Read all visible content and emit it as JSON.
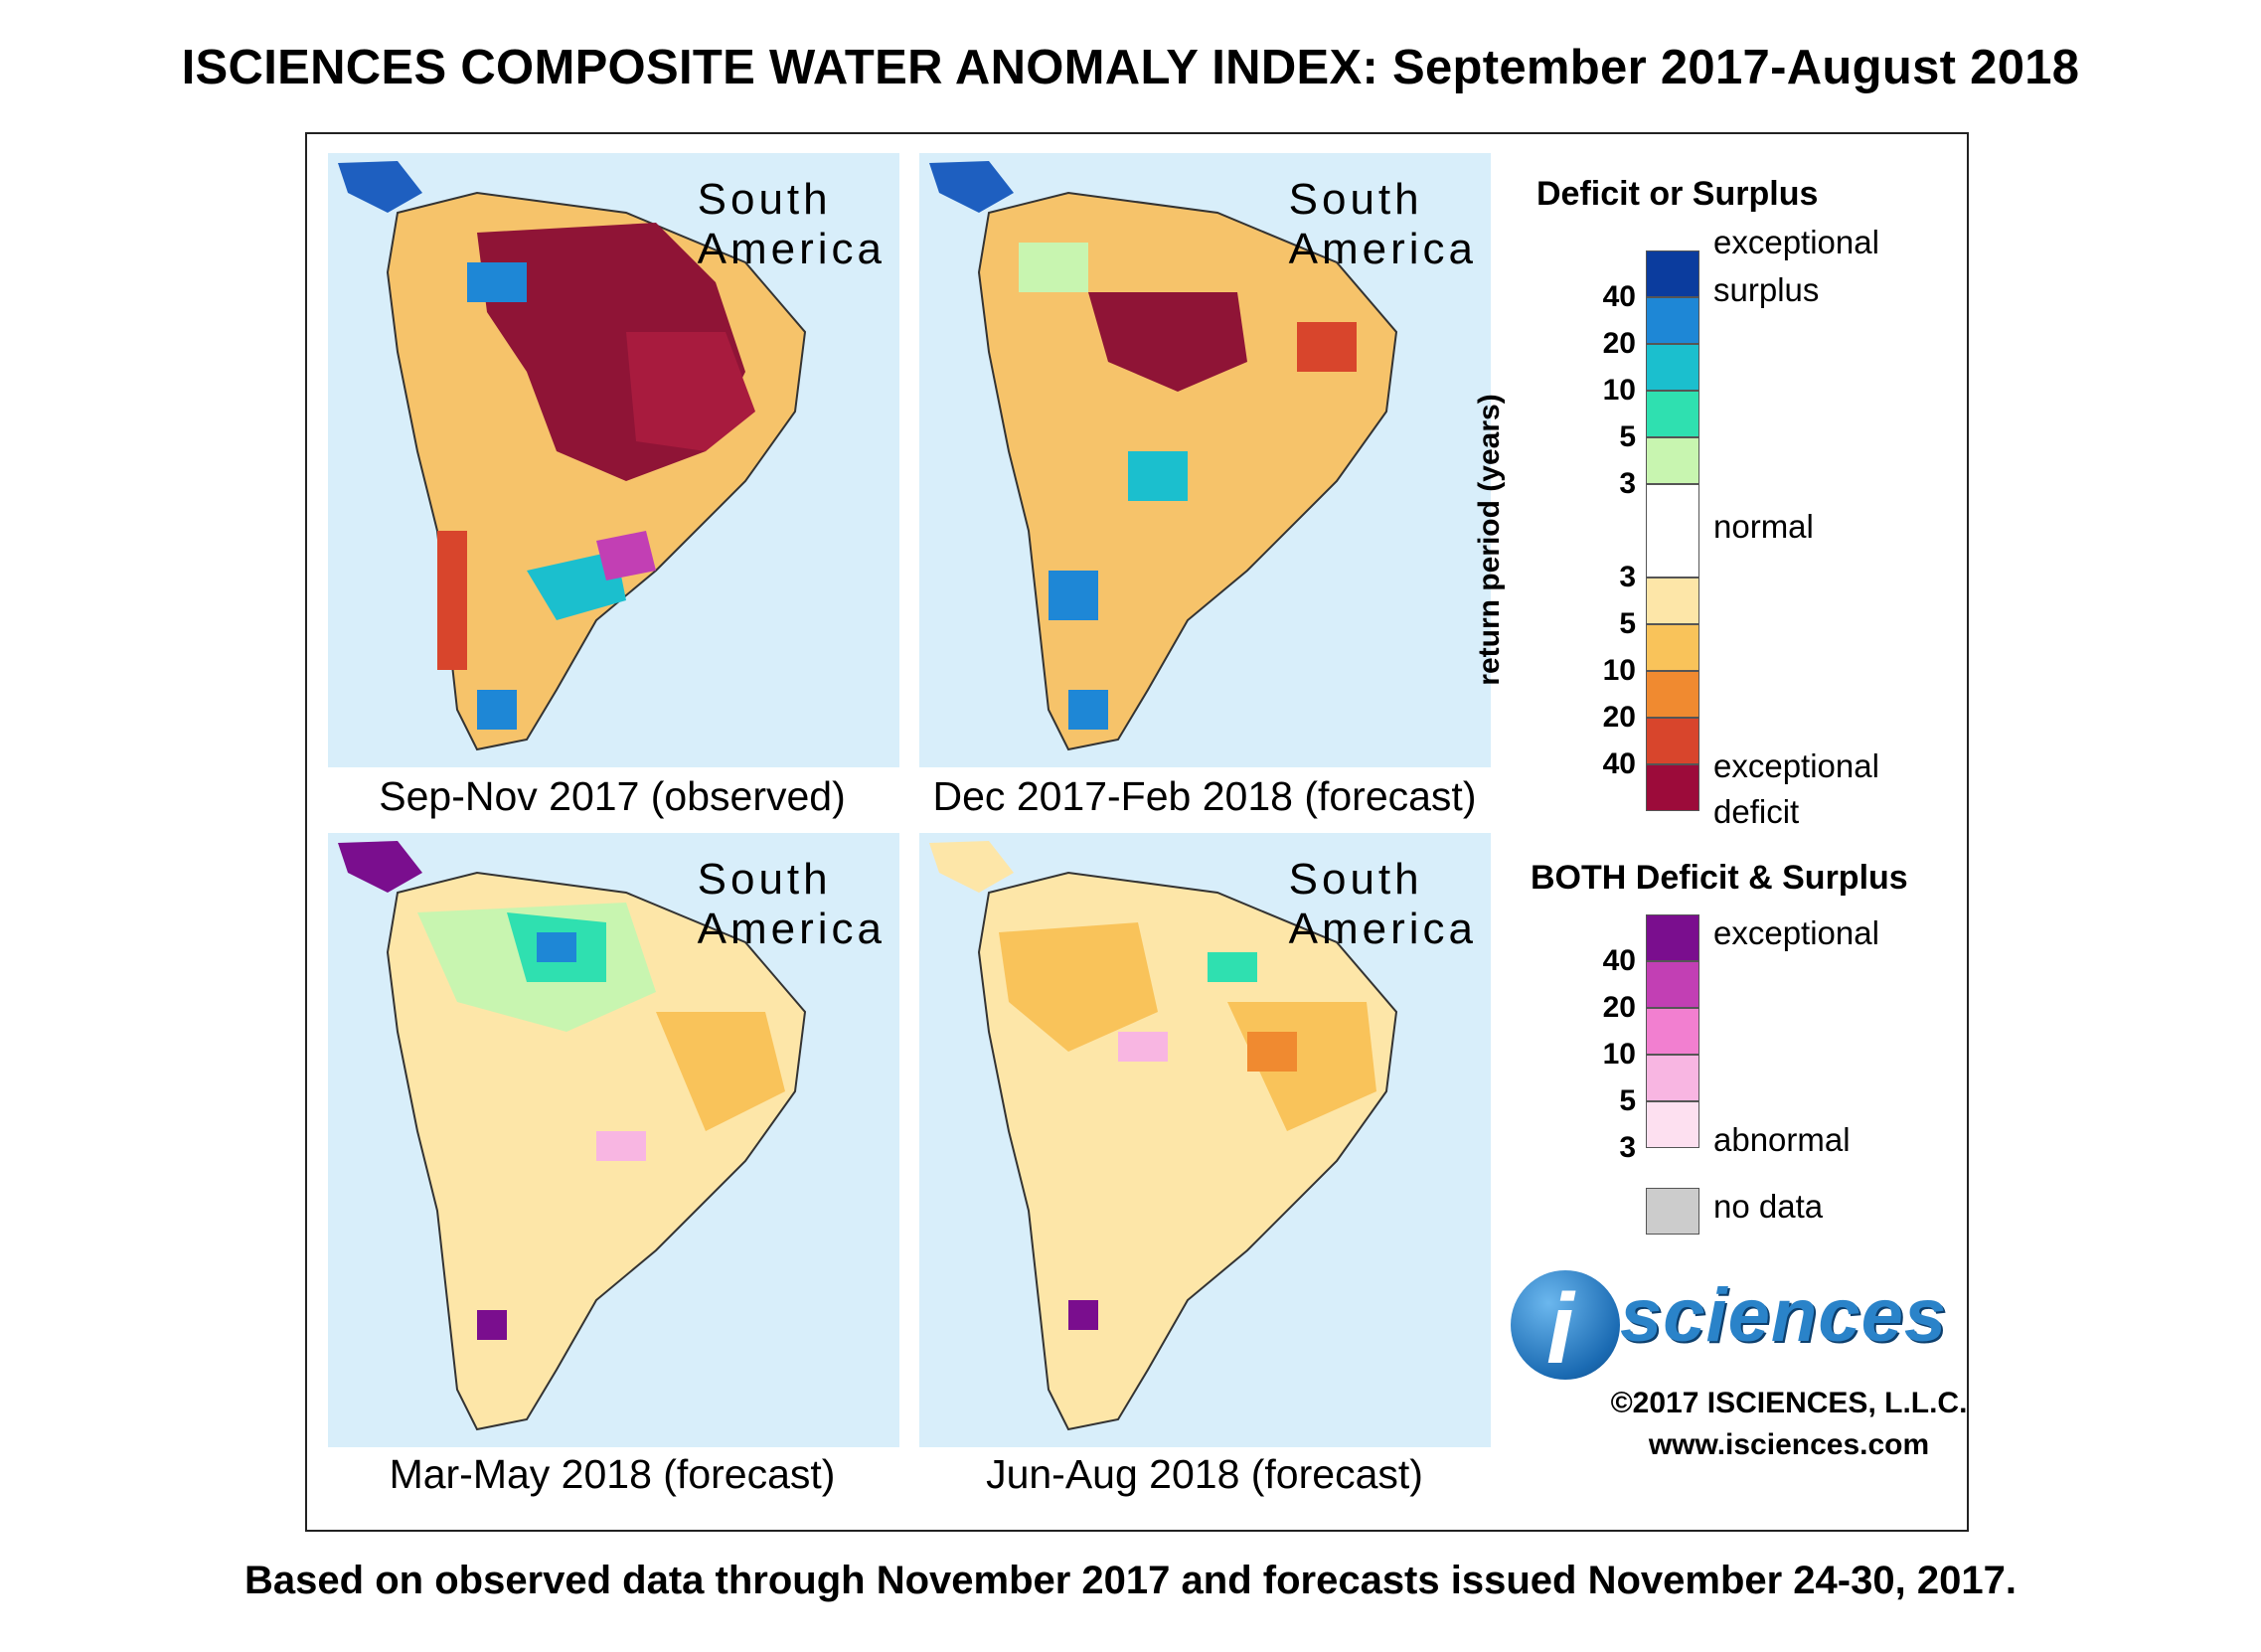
{
  "title": "ISCIENCES COMPOSITE WATER ANOMALY INDEX: September 2017-August 2018",
  "footer": "Based on observed data through November 2017 and forecasts issued November 24-30, 2017.",
  "panels": [
    {
      "region_line1": "South",
      "region_line2": "America",
      "caption": "Sep-Nov 2017 (observed)",
      "theme": "deficit-heavy"
    },
    {
      "region_line1": "South",
      "region_line2": "America",
      "caption": "Dec 2017-Feb 2018 (forecast)",
      "theme": "deficit-moderate"
    },
    {
      "region_line1": "South",
      "region_line2": "America",
      "caption": "Mar-May 2018 (forecast)",
      "theme": "surplus-north"
    },
    {
      "region_line1": "South",
      "region_line2": "America",
      "caption": "Jun-Aug 2018 (forecast)",
      "theme": "mild-deficit"
    }
  ],
  "legend": {
    "deficit_surplus_title": "Deficit or Surplus",
    "axis_title": "return period (years)",
    "surplus_ticks": [
      "40",
      "20",
      "10",
      "5",
      "3"
    ],
    "deficit_ticks": [
      "3",
      "5",
      "10",
      "20",
      "40"
    ],
    "labels": {
      "exceptional_surplus_1": "exceptional",
      "exceptional_surplus_2": "surplus",
      "normal": "normal",
      "exceptional_deficit_1": "exceptional",
      "exceptional_deficit_2": "deficit"
    },
    "both_title": "BOTH Deficit & Surplus",
    "both_ticks": [
      "40",
      "20",
      "10",
      "5",
      "3"
    ],
    "both_labels": {
      "top": "exceptional",
      "bottom": "abnormal"
    },
    "no_data": "no data",
    "colors": {
      "surplus": [
        "#0b3c9e",
        "#1e87d6",
        "#1bbfce",
        "#2fe0b0",
        "#c8f5b0"
      ],
      "normal": "#ffffff",
      "deficit": [
        "#fde6a8",
        "#f9c35a",
        "#f08a30",
        "#d8452c",
        "#9c0b3a"
      ],
      "both": [
        "#7a0e8e",
        "#c23fb4",
        "#f27fd0",
        "#f8b6e2",
        "#fde0f0"
      ],
      "no_data": "#cccccc"
    }
  },
  "logo": {
    "letter": "i",
    "word": "sciences"
  },
  "copyright": "©2017 ISCIENCES, L.L.C.",
  "website": "www.isciences.com"
}
